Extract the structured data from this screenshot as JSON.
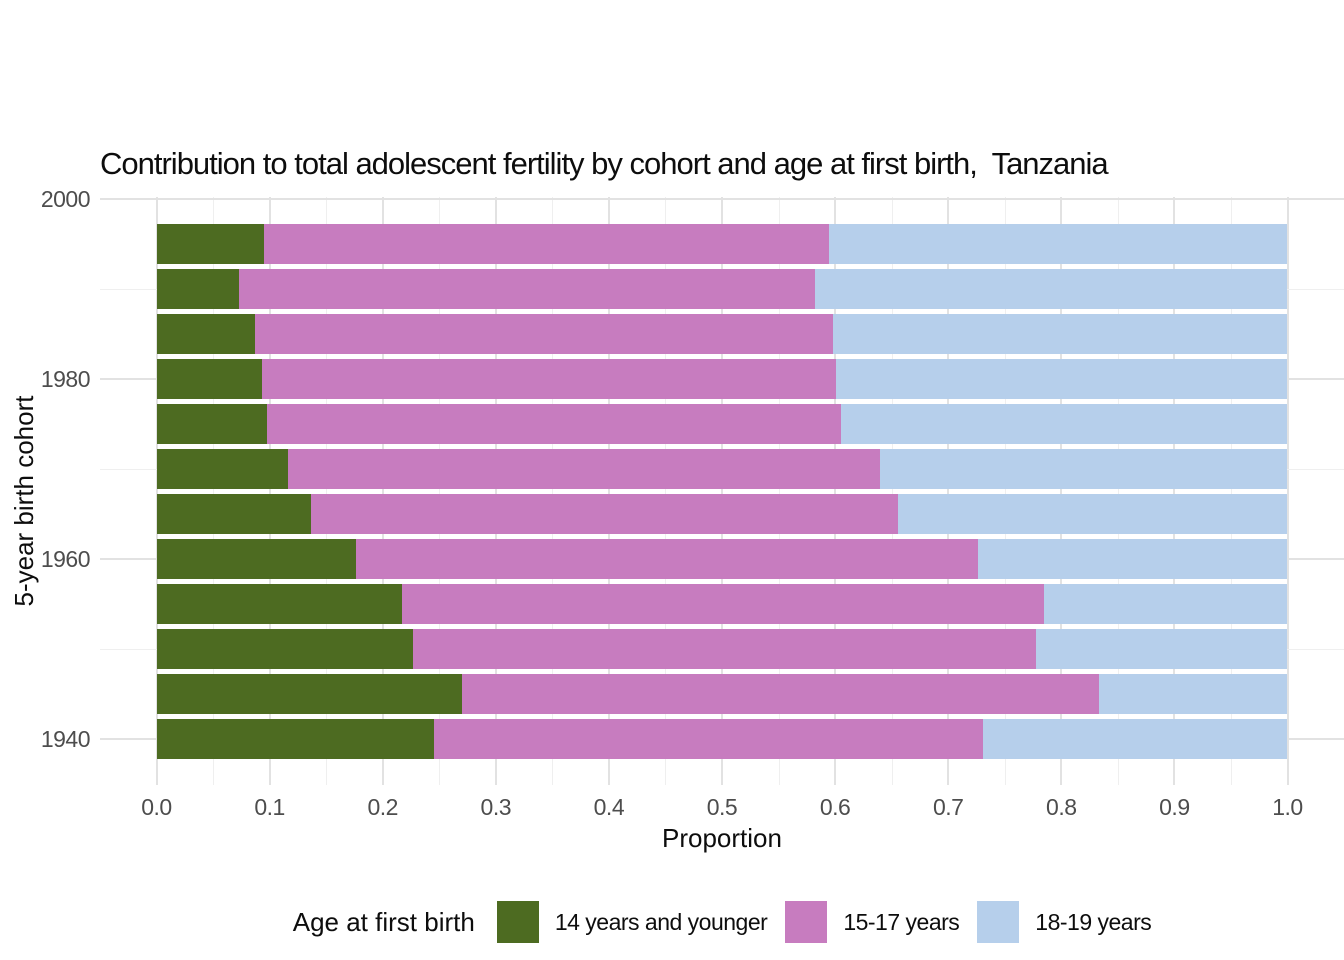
{
  "title": "Contribution to total adolescent fertility by cohort and age at first birth,  Tanzania",
  "axes": {
    "x_title": "Proportion",
    "y_title": "5-year birth cohort"
  },
  "legend": {
    "title": "Age at first birth",
    "items": [
      {
        "label": "14 years and younger",
        "color": "#4d6b21"
      },
      {
        "label": "15-17 years",
        "color": "#c77cbf"
      },
      {
        "label": "18-19 years",
        "color": "#b6cfeb"
      }
    ]
  },
  "chart_data": {
    "type": "bar",
    "orientation": "horizontal",
    "stacked": true,
    "title": "Contribution to total adolescent fertility by cohort and age at first birth,  Tanzania",
    "xlabel": "Proportion",
    "ylabel": "5-year birth cohort",
    "xlim": [
      -0.05,
      1.05
    ],
    "ylim": [
      1935,
      2000
    ],
    "grid": "major and minor gridlines, light gray on white, legend at bottom",
    "legend_position": "bottom",
    "legend_title": "Age at first birth",
    "x_ticks": [
      "0.0",
      "0.1",
      "0.2",
      "0.3",
      "0.4",
      "0.5",
      "0.6",
      "0.7",
      "0.8",
      "0.9",
      "1.0"
    ],
    "y_ticks": [
      "1940",
      "1960",
      "1980",
      "2000"
    ],
    "categories": [
      1940,
      1945,
      1950,
      1955,
      1960,
      1965,
      1970,
      1975,
      1980,
      1985,
      1990,
      1995
    ],
    "series": [
      {
        "name": "14 years and younger",
        "color": "#4d6b21",
        "values": [
          0.245,
          0.27,
          0.227,
          0.217,
          0.176,
          0.137,
          0.116,
          0.098,
          0.093,
          0.087,
          0.073,
          0.095
        ]
      },
      {
        "name": "15-17 years",
        "color": "#c77cbf",
        "values": [
          0.486,
          0.563,
          0.551,
          0.568,
          0.55,
          0.519,
          0.524,
          0.507,
          0.508,
          0.511,
          0.509,
          0.5
        ]
      },
      {
        "name": "18-19 years",
        "color": "#b6cfeb",
        "values": [
          0.269,
          0.167,
          0.222,
          0.215,
          0.274,
          0.344,
          0.36,
          0.395,
          0.399,
          0.402,
          0.418,
          0.405
        ]
      }
    ]
  }
}
